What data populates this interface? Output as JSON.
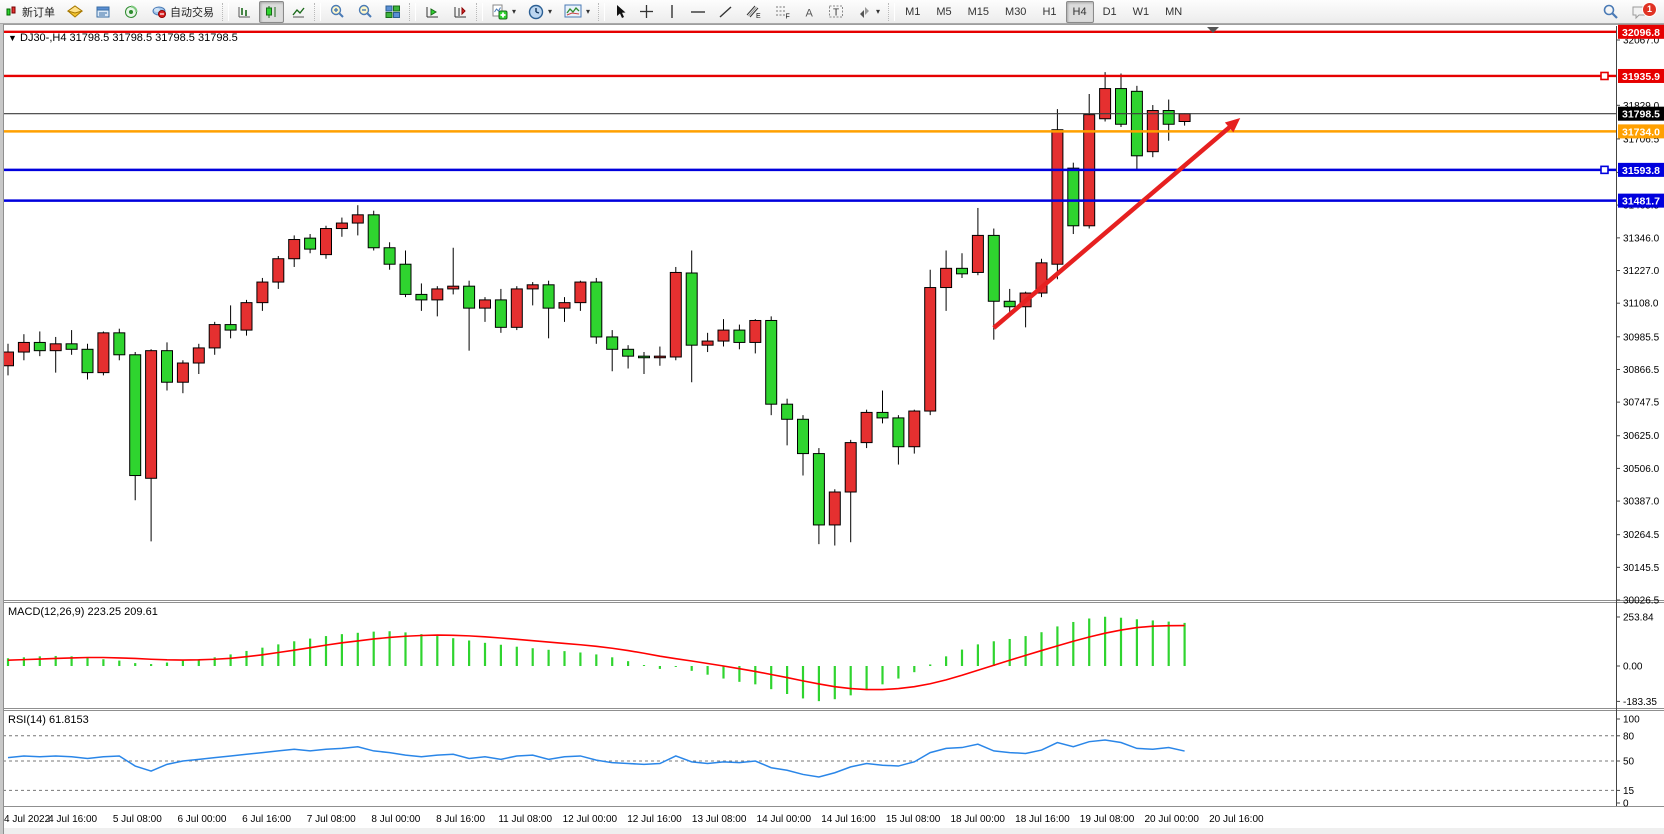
{
  "toolbar": {
    "new_order_label": "新订单",
    "auto_trading_label": "自动交易",
    "timeframes": [
      "M1",
      "M5",
      "M15",
      "M30",
      "H1",
      "H4",
      "D1",
      "W1",
      "MN"
    ],
    "active_timeframe": "H4",
    "chat_badge": "1"
  },
  "chart": {
    "title_marker": "▼",
    "title": "DJ30-,H4  31798.5 31798.5 31798.5 31798.5",
    "symbol": "DJ30-",
    "period": "H4",
    "current_price": 31798.5
  },
  "price_axis_ticks": [
    "32067.0",
    "31829.0",
    "31706.5",
    "31584.5",
    "31465.5",
    "31346.0",
    "31227.0",
    "31108.0",
    "30985.5",
    "30866.5",
    "30747.5",
    "30625.0",
    "30506.0",
    "30387.0",
    "30264.5",
    "30145.5",
    "30026.5"
  ],
  "time_axis_labels": [
    "4 Jul 2022",
    "4 Jul 16:00",
    "5 Jul 08:00",
    "6 Jul 00:00",
    "6 Jul 16:00",
    "7 Jul 08:00",
    "8 Jul 00:00",
    "8 Jul 16:00",
    "11 Jul 08:00",
    "12 Jul 00:00",
    "12 Jul 16:00",
    "13 Jul 08:00",
    "14 Jul 00:00",
    "14 Jul 16:00",
    "15 Jul 08:00",
    "18 Jul 00:00",
    "18 Jul 16:00",
    "19 Jul 08:00",
    "20 Jul 00:00",
    "20 Jul 16:00"
  ],
  "levels": [
    {
      "price": 32096.8,
      "tag": "32096.8",
      "color": "#e60000",
      "width": 2.4,
      "handle": false
    },
    {
      "price": 31935.9,
      "tag": "31935.9",
      "color": "#e60000",
      "width": 2.4,
      "handle": true
    },
    {
      "price": 31798.5,
      "tag": "31798.5",
      "color": "#3c3c3c",
      "width": 1.2,
      "handle": false,
      "tag_bg": "#000000"
    },
    {
      "price": 31734.0,
      "tag": "31734.0",
      "color": "#ffa000",
      "width": 2.6,
      "handle": false
    },
    {
      "price": 31593.8,
      "tag": "31593.8",
      "color": "#0000dd",
      "width": 2.6,
      "handle": true
    },
    {
      "price": 31481.7,
      "tag": "31481.7",
      "color": "#0000dd",
      "width": 2.6,
      "handle": false
    }
  ],
  "indicators": {
    "macd": {
      "label": "MACD(12,26,9) 223.25 209.61",
      "axis_ticks": [
        "253.84",
        "0.00",
        "-183.35"
      ],
      "axis_values": [
        253.84,
        0,
        -183.35
      ]
    },
    "rsi": {
      "label": "RSI(14) 61.8153",
      "axis_ticks": [
        "100",
        "80",
        "50",
        "15",
        "0"
      ],
      "axis_values": [
        100,
        80,
        50,
        15,
        0
      ],
      "dashed_levels": [
        80,
        50,
        15
      ]
    }
  },
  "annotation_arrow": {
    "from": {
      "bar": 62,
      "price": 31018
    },
    "to": {
      "bar": 77.5,
      "price": 31783
    },
    "color": "#e62020"
  },
  "chart_data": {
    "type": "candlestick",
    "up_color": "#e53030",
    "down_color": "#2fd42f",
    "wick_color": "#000000",
    "y_axis": {
      "max": 32118,
      "min": 30026.5
    },
    "columns": [
      "time",
      "open",
      "high",
      "low",
      "close"
    ],
    "candles": [
      [
        "4 Jul 00:00",
        30880,
        30960,
        30845,
        30930
      ],
      [
        "4 Jul 04:00",
        30930,
        30995,
        30900,
        30965
      ],
      [
        "4 Jul 08:00",
        30965,
        31005,
        30915,
        30935
      ],
      [
        "4 Jul 12:00",
        30935,
        30985,
        30855,
        30960
      ],
      [
        "4 Jul 16:00",
        30960,
        31010,
        30920,
        30940
      ],
      [
        "4 Jul 20:00",
        30940,
        30960,
        30830,
        30855
      ],
      [
        "5 Jul 00:00",
        30855,
        31005,
        30845,
        31000
      ],
      [
        "5 Jul 04:00",
        31000,
        31015,
        30900,
        30920
      ],
      [
        "5 Jul 08:00",
        30920,
        30930,
        30390,
        30480
      ],
      [
        "5 Jul 12:00",
        30470,
        30940,
        30240,
        30935
      ],
      [
        "5 Jul 16:00",
        30935,
        30965,
        30790,
        30820
      ],
      [
        "5 Jul 20:00",
        30820,
        30900,
        30780,
        30890
      ],
      [
        "6 Jul 00:00",
        30890,
        30960,
        30850,
        30945
      ],
      [
        "6 Jul 04:00",
        30945,
        31040,
        30920,
        31030
      ],
      [
        "6 Jul 08:00",
        31030,
        31100,
        30980,
        31010
      ],
      [
        "6 Jul 12:00",
        31010,
        31120,
        30990,
        31110
      ],
      [
        "6 Jul 16:00",
        31110,
        31200,
        31080,
        31185
      ],
      [
        "6 Jul 20:00",
        31185,
        31280,
        31160,
        31270
      ],
      [
        "7 Jul 00:00",
        31270,
        31355,
        31240,
        31340
      ],
      [
        "7 Jul 04:00",
        31345,
        31360,
        31290,
        31305
      ],
      [
        "7 Jul 08:00",
        31285,
        31390,
        31270,
        31380
      ],
      [
        "7 Jul 12:00",
        31380,
        31420,
        31350,
        31400
      ],
      [
        "7 Jul 16:00",
        31400,
        31465,
        31355,
        31430
      ],
      [
        "7 Jul 20:00",
        31430,
        31445,
        31300,
        31310
      ],
      [
        "8 Jul 00:00",
        31310,
        31330,
        31230,
        31250
      ],
      [
        "8 Jul 04:00",
        31250,
        31300,
        31130,
        31140
      ],
      [
        "8 Jul 08:00",
        31140,
        31180,
        31080,
        31120
      ],
      [
        "8 Jul 12:00",
        31120,
        31170,
        31060,
        31160
      ],
      [
        "8 Jul 16:00",
        31160,
        31310,
        31140,
        31170
      ],
      [
        "8 Jul 20:00",
        31170,
        31190,
        30935,
        31090
      ],
      [
        "11 Jul 00:00",
        31090,
        31130,
        31040,
        31120
      ],
      [
        "11 Jul 04:00",
        31120,
        31160,
        31000,
        31020
      ],
      [
        "11 Jul 08:00",
        31020,
        31170,
        31010,
        31160
      ],
      [
        "11 Jul 12:00",
        31160,
        31185,
        31100,
        31175
      ],
      [
        "11 Jul 16:00",
        31175,
        31190,
        30980,
        31090
      ],
      [
        "11 Jul 20:00",
        31090,
        31130,
        31040,
        31110
      ],
      [
        "12 Jul 00:00",
        31110,
        31190,
        31080,
        31185
      ],
      [
        "12 Jul 04:00",
        31185,
        31200,
        30960,
        30985
      ],
      [
        "12 Jul 08:00",
        30985,
        31010,
        30860,
        30940
      ],
      [
        "12 Jul 12:00",
        30940,
        30955,
        30870,
        30915
      ],
      [
        "12 Jul 16:00",
        30915,
        30930,
        30850,
        30910
      ],
      [
        "12 Jul 20:00",
        30910,
        30950,
        30880,
        30915
      ],
      [
        "13 Jul 00:00",
        30912,
        31240,
        30900,
        31220
      ],
      [
        "13 Jul 04:00",
        31218,
        31300,
        30820,
        30955
      ],
      [
        "13 Jul 08:00",
        30955,
        31000,
        30930,
        30970
      ],
      [
        "13 Jul 12:00",
        30970,
        31050,
        30950,
        31010
      ],
      [
        "13 Jul 16:00",
        31010,
        31030,
        30940,
        30965
      ],
      [
        "13 Jul 20:00",
        30965,
        31050,
        30925,
        31045
      ],
      [
        "14 Jul 00:00",
        31045,
        31060,
        30700,
        30740
      ],
      [
        "14 Jul 04:00",
        30740,
        30760,
        30590,
        30685
      ],
      [
        "14 Jul 08:00",
        30685,
        30700,
        30480,
        30560
      ],
      [
        "14 Jul 12:00",
        30560,
        30580,
        30230,
        30300
      ],
      [
        "14 Jul 16:00",
        30300,
        30430,
        30225,
        30420
      ],
      [
        "14 Jul 20:00",
        30420,
        30610,
        30237,
        30600
      ],
      [
        "15 Jul 00:00",
        30600,
        30720,
        30580,
        30710
      ],
      [
        "15 Jul 04:00",
        30710,
        30790,
        30670,
        30690
      ],
      [
        "15 Jul 08:00",
        30690,
        30700,
        30520,
        30585
      ],
      [
        "15 Jul 12:00",
        30585,
        30720,
        30560,
        30715
      ],
      [
        "15 Jul 16:00",
        30715,
        31230,
        30700,
        31165
      ],
      [
        "15 Jul 20:00",
        31165,
        31300,
        31080,
        31235
      ],
      [
        "18 Jul 00:00",
        31235,
        31290,
        31200,
        31215
      ],
      [
        "18 Jul 04:00",
        31220,
        31455,
        31210,
        31355
      ],
      [
        "18 Jul 08:00",
        31355,
        31380,
        30975,
        31115
      ],
      [
        "18 Jul 12:00",
        31115,
        31160,
        31060,
        31095
      ],
      [
        "18 Jul 16:00",
        31095,
        31150,
        31020,
        31145
      ],
      [
        "18 Jul 20:00",
        31145,
        31270,
        31130,
        31255
      ],
      [
        "19 Jul 00:00",
        31250,
        31815,
        31195,
        31740
      ],
      [
        "19 Jul 04:00",
        31600,
        31620,
        31360,
        31390
      ],
      [
        "19 Jul 08:00",
        31390,
        31870,
        31380,
        31795
      ],
      [
        "19 Jul 12:00",
        31780,
        31950,
        31770,
        31890
      ],
      [
        "19 Jul 16:00",
        31890,
        31945,
        31750,
        31760
      ],
      [
        "19 Jul 20:00",
        31880,
        31900,
        31590,
        31645
      ],
      [
        "20 Jul 00:00",
        31660,
        31830,
        31640,
        31810
      ],
      [
        "20 Jul 04:00",
        31810,
        31850,
        31700,
        31760
      ],
      [
        "20 Jul 08:00",
        31770,
        31800,
        31755,
        31798.5
      ]
    ],
    "macd_main": [
      40,
      45,
      50,
      52,
      50,
      45,
      35,
      28,
      15,
      10,
      18,
      28,
      35,
      45,
      60,
      78,
      95,
      112,
      128,
      142,
      155,
      165,
      172,
      178,
      180,
      174,
      165,
      155,
      144,
      132,
      120,
      110,
      100,
      92,
      84,
      77,
      70,
      60,
      45,
      25,
      5,
      -15,
      -5,
      -25,
      -45,
      -65,
      -82,
      -95,
      -120,
      -145,
      -168,
      -182,
      -172,
      -152,
      -125,
      -95,
      -65,
      -32,
      8,
      50,
      85,
      112,
      128,
      140,
      155,
      175,
      205,
      228,
      246,
      255,
      250,
      242,
      236,
      230,
      223.25
    ],
    "macd_signal": [
      30,
      33,
      36,
      39,
      42,
      44,
      44,
      42,
      39,
      35,
      32,
      31,
      32,
      35,
      40,
      48,
      58,
      70,
      82,
      95,
      108,
      120,
      130,
      140,
      148,
      154,
      158,
      160,
      159,
      156,
      151,
      145,
      138,
      131,
      124,
      117,
      110,
      102,
      92,
      80,
      66,
      51,
      38,
      26,
      13,
      0,
      -14,
      -28,
      -44,
      -60,
      -77,
      -93,
      -107,
      -117,
      -122,
      -122,
      -117,
      -107,
      -92,
      -72,
      -48,
      -22,
      4,
      30,
      55,
      80,
      104,
      128,
      150,
      170,
      186,
      199,
      206,
      209,
      209.61
    ],
    "rsi": [
      54,
      56,
      55,
      56,
      55,
      53,
      55,
      56,
      44,
      38,
      46,
      50,
      52,
      54,
      56,
      58,
      60,
      62,
      64,
      62,
      64,
      65,
      67,
      62,
      60,
      57,
      55,
      57,
      58,
      53,
      55,
      52,
      56,
      57,
      52,
      55,
      56,
      51,
      48,
      47,
      46,
      47,
      56,
      49,
      47,
      49,
      48,
      50,
      42,
      39,
      34,
      31,
      36,
      43,
      47,
      45,
      44,
      49,
      60,
      65,
      66,
      70,
      62,
      60,
      59,
      63,
      72,
      67,
      73,
      75,
      72,
      65,
      64,
      66,
      61.82
    ],
    "macd_hist_color": "#2fd42f",
    "macd_signal_color": "#ff0000",
    "rsi_color": "#2a86e8"
  }
}
